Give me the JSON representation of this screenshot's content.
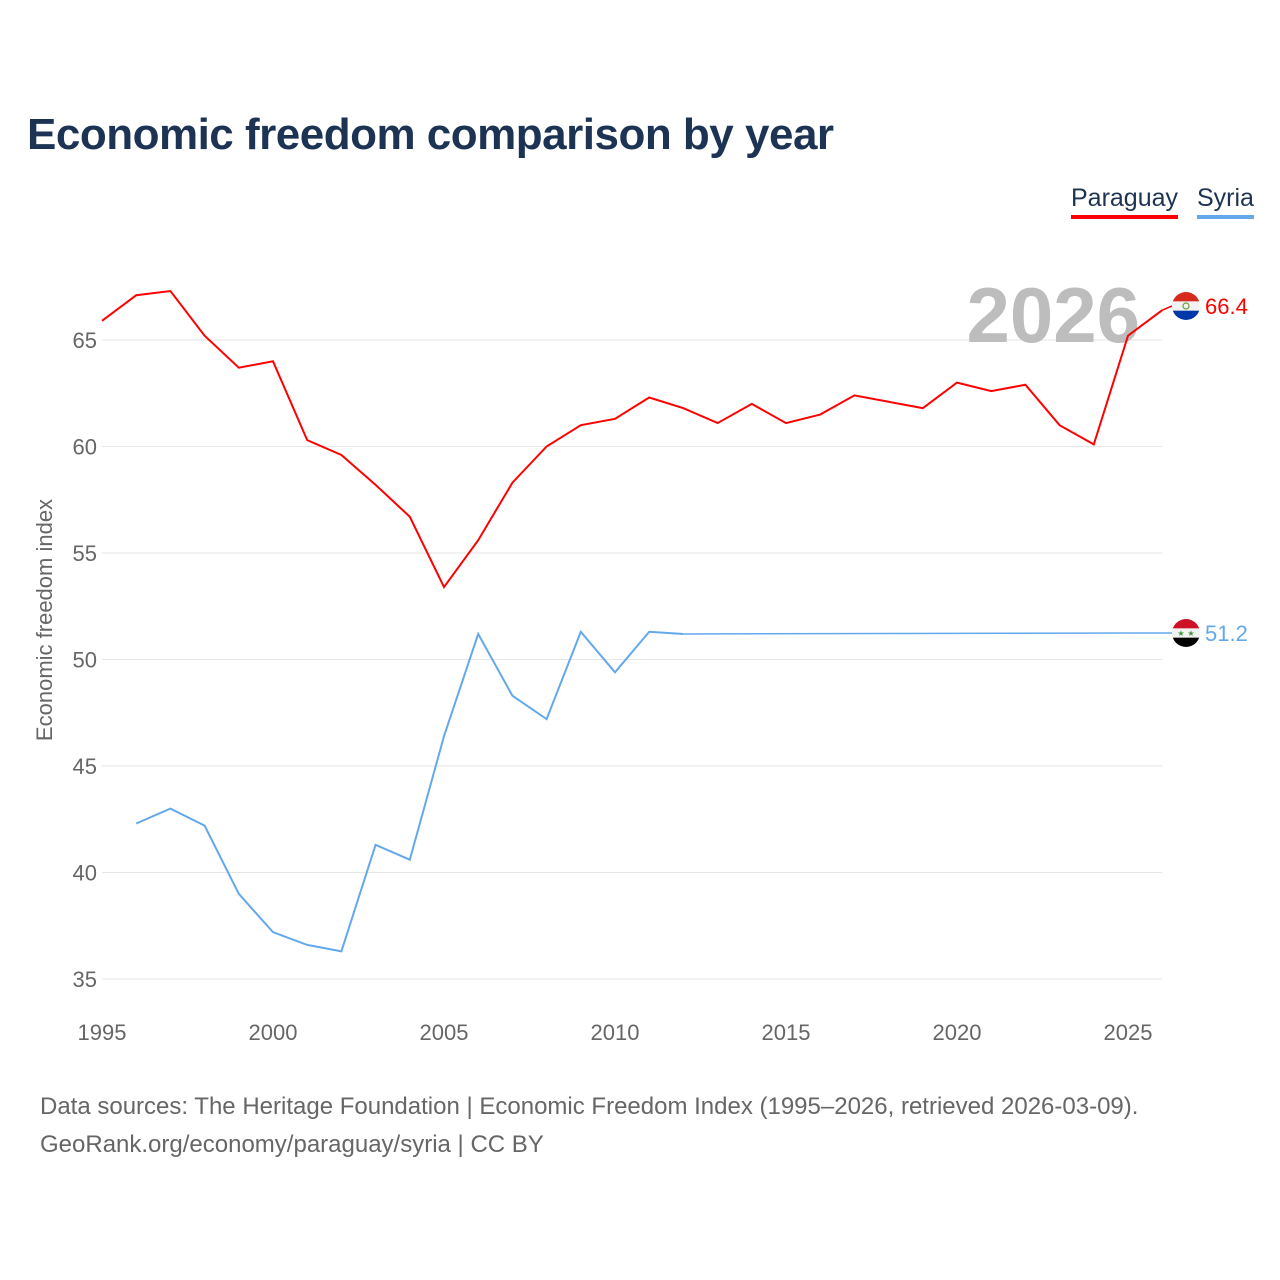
{
  "title": "Economic freedom comparison by year",
  "legend": [
    "Paraguay",
    "Syria"
  ],
  "source_line1": "Data sources: The Heritage Foundation | Economic Freedom Index (1995–2026, retrieved 2026-03-09).",
  "source_line2": "GeoRank.org/economy/paraguay/syria | CC BY",
  "chart_data": {
    "type": "line",
    "title": "Economic freedom comparison by year",
    "xlabel": "",
    "ylabel": "Economic freedom index",
    "xlim": [
      1995,
      2026
    ],
    "ylim": [
      34,
      68
    ],
    "xticks": [
      1995,
      2000,
      2005,
      2010,
      2015,
      2020,
      2025
    ],
    "yticks": [
      35,
      40,
      45,
      50,
      55,
      60,
      65
    ],
    "year_watermark": "2026",
    "grid": true,
    "legend_position": "top-right",
    "series": [
      {
        "name": "Paraguay",
        "color": "#ff0000",
        "end_label": "66.4",
        "x": [
          1995,
          1996,
          1997,
          1998,
          1999,
          2000,
          2001,
          2002,
          2003,
          2004,
          2005,
          2006,
          2007,
          2008,
          2009,
          2010,
          2011,
          2012,
          2013,
          2014,
          2015,
          2016,
          2017,
          2018,
          2019,
          2020,
          2021,
          2022,
          2023,
          2024,
          2025,
          2026
        ],
        "values": [
          65.9,
          67.1,
          67.3,
          65.2,
          63.7,
          64.0,
          60.3,
          59.6,
          58.2,
          56.7,
          53.4,
          55.6,
          58.3,
          60.0,
          61.0,
          61.3,
          62.3,
          61.8,
          61.1,
          62.0,
          61.1,
          61.5,
          62.4,
          62.1,
          61.8,
          63.0,
          62.6,
          62.9,
          61.0,
          60.1,
          65.2,
          66.4
        ]
      },
      {
        "name": "Syria",
        "color": "#64a8ec",
        "end_label": "51.2",
        "x": [
          1996,
          1997,
          1998,
          1999,
          2000,
          2001,
          2002,
          2003,
          2004,
          2005,
          2006,
          2007,
          2008,
          2009,
          2010,
          2011,
          2012
        ],
        "values": [
          42.3,
          43.0,
          42.2,
          39.0,
          37.2,
          36.6,
          36.3,
          41.3,
          40.6,
          46.4,
          51.2,
          48.3,
          47.2,
          51.3,
          49.4,
          51.3,
          51.2
        ]
      }
    ]
  }
}
